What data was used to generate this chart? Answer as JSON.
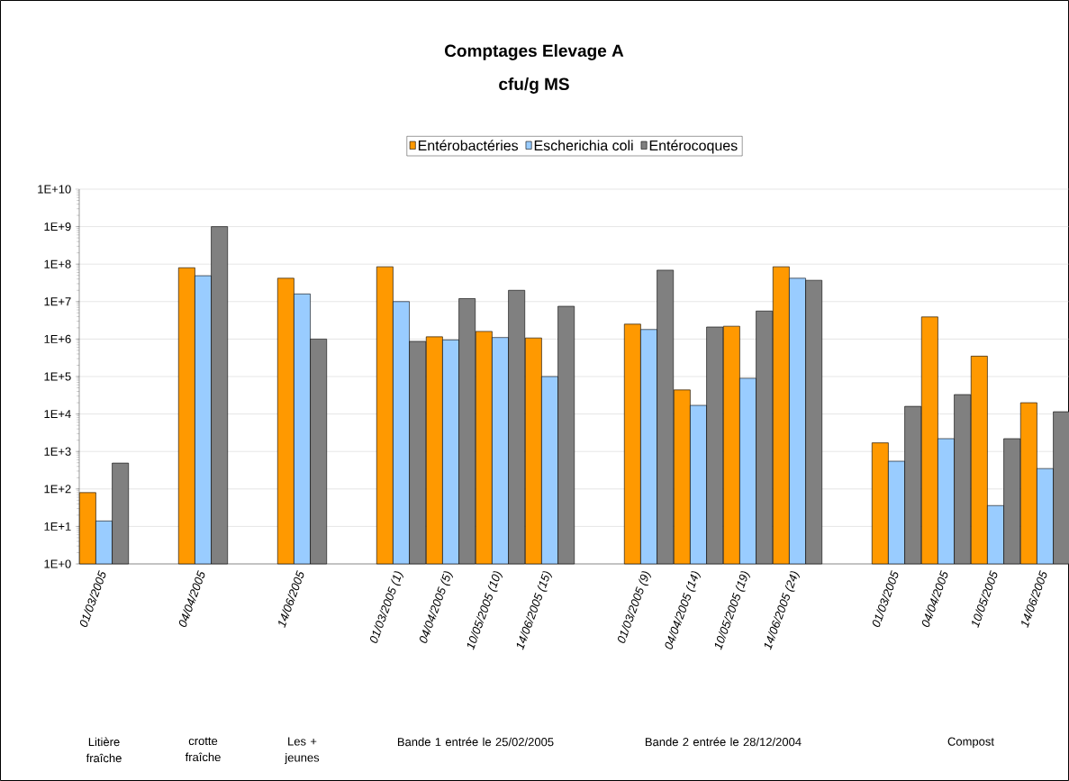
{
  "chart_data": {
    "type": "bar",
    "title": "Comptages Elevage A",
    "subtitle": "cfu/g MS",
    "categories": [
      "01/03/2005",
      null,
      "04/04/2005",
      null,
      "14/06/2005",
      null,
      "01/03/2005 (1)",
      "04/04/2005 (5)",
      "10/05/2005 (10)",
      "14/06/2005 (15)",
      null,
      "01/03/2005 (9)",
      "04/04/2005 (14)",
      "10/05/2005 (19)",
      "14/06/2005 (24)",
      null,
      "01/03/2005",
      "04/04/2005",
      "10/05/2005",
      "14/06/2005"
    ],
    "series": [
      {
        "name": "Entérobactéries",
        "color": "#ff9900",
        "values": [
          80,
          null,
          80000000,
          null,
          42000000,
          null,
          85000000,
          1150000,
          1600000,
          1070000,
          null,
          2500000,
          44000,
          2200000,
          85000000,
          null,
          1700,
          3900000,
          350000,
          20000
        ]
      },
      {
        "name": "Escherichia coli",
        "color": "#99ccff",
        "values": [
          14,
          null,
          49000000,
          null,
          16000000,
          null,
          10000000,
          950000,
          1100000,
          100000,
          null,
          1800000,
          17000,
          90000,
          42000000,
          null,
          550,
          2200,
          36,
          350
        ]
      },
      {
        "name": "Entérocoques",
        "color": "#808080",
        "values": [
          490,
          null,
          1000000000,
          null,
          1000000,
          null,
          870000,
          12000000,
          20000000,
          7500000,
          null,
          69000000,
          2100000,
          5600000,
          37000000,
          null,
          16000,
          33000,
          2200,
          11500
        ]
      }
    ],
    "log": true,
    "ylim": [
      1,
      10000000000
    ],
    "yticks": [
      {
        "value": 1,
        "label": "1E+0"
      },
      {
        "value": 10,
        "label": "1E+1"
      },
      {
        "value": 100,
        "label": "1E+2"
      },
      {
        "value": 1000,
        "label": "1E+3"
      },
      {
        "value": 10000,
        "label": "1E+4"
      },
      {
        "value": 100000,
        "label": "1E+5"
      },
      {
        "value": 1000000,
        "label": "1E+6"
      },
      {
        "value": 10000000,
        "label": "1E+7"
      },
      {
        "value": 100000000,
        "label": "1E+8"
      },
      {
        "value": 1000000000,
        "label": "1E+9"
      },
      {
        "value": 10000000000,
        "label": "1E+10"
      }
    ],
    "grid": "y",
    "legend": "top",
    "annotations": [
      "Litière fraîche",
      "crotte fraîche",
      "Les + jeunes",
      "Bande 1 entrée le 25/02/2005",
      "Bande 2 entrée le 28/12/2004",
      "Compost"
    ]
  }
}
